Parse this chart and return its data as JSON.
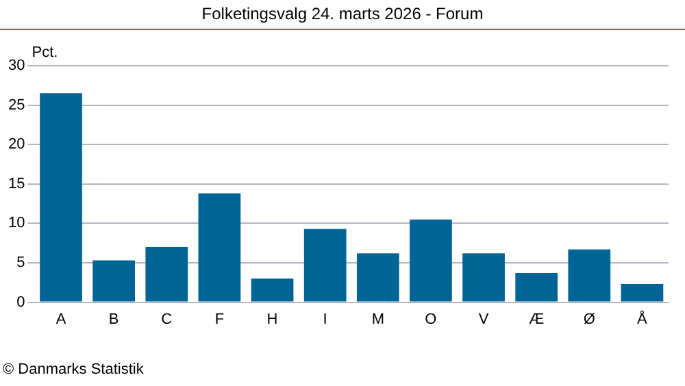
{
  "chart_data": {
    "type": "bar",
    "title": "Folketingsvalg 24. marts 2026 - Forum",
    "ylabel": "Pct.",
    "categories": [
      "A",
      "B",
      "C",
      "F",
      "H",
      "I",
      "M",
      "O",
      "V",
      "Æ",
      "Ø",
      "Å"
    ],
    "values": [
      26.5,
      5.3,
      7.0,
      13.8,
      3.0,
      9.3,
      6.2,
      10.5,
      6.2,
      3.7,
      6.7,
      2.3
    ],
    "color": "#006496",
    "ylim": [
      0,
      30
    ],
    "yticks": [
      0,
      5,
      10,
      15,
      20,
      25,
      30
    ],
    "grid": "y",
    "legend": false,
    "annotations": [
      "© Danmarks Statistik"
    ]
  }
}
